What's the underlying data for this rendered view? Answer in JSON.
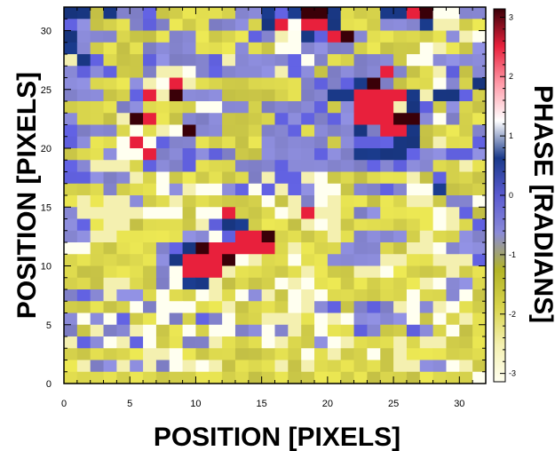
{
  "chart_data": {
    "type": "heatmap",
    "title": "",
    "xlabel": "POSITION [PIXELS]",
    "ylabel": "POSITION [PIXELS]",
    "colorbar_label": "PHASE [RADIANS]",
    "x_ticks": [
      "0",
      "5",
      "10",
      "15",
      "20",
      "25",
      "30"
    ],
    "y_ticks": [
      "0",
      "5",
      "10",
      "15",
      "20",
      "25",
      "30"
    ],
    "colorbar_ticks": [
      "-3",
      "-2",
      "-1",
      "0",
      "1",
      "2",
      "3"
    ],
    "xlim": [
      0,
      32
    ],
    "ylim": [
      0,
      32
    ],
    "zlim": [
      -3.14,
      3.14
    ],
    "colormap": [
      "#fffff0",
      "#f4f0b0",
      "#d8d44c",
      "#b2b426",
      "#8a8ad8",
      "#5a5ad0",
      "#1a3a8a",
      "#ffffff",
      "#ff9aa8",
      "#e8203c",
      "#3a0008"
    ],
    "rows_top_to_bottom": [
      "2202111000000112223320002233xx11",
      "2100011100011102343320001112xx00",
      "2111000011000011xx223310000001xx",
      "2100001111000100xx111100000xx001",
      "x21000111111x11111x1001110xx1111",
      "1211001xxx111111x11011113100x101",
      "110001xx3x000000001111231000x102",
      "1110013x3111000000112233332x2210",
      "0000110000xx1101111101333x220100",
      "1000x33001110000111111333331x100",
      "11110x0xx31100011101112133200001",
      "1100x3x111000001111101122220x001",
      "0001xx31111210011111112222111111",
      "11xxx0111100011111111111121100x0",
      "11111x0x0000001x11xx000000x01000",
      "0001000x1xxx11x1x11xx01111xx2000",
      "0x0xx100x000000x0x1xx00000xx011x",
      "1xxxxxxxx0xx3000xx3xx0110000xx20",
      "110xx00000x2220000xxx0000000xx01",
      "11xx0000011x23330000x011110x0011",
      "xx000001123333330x00011100xxx111",
      "0000000123333xx00x001111xx00xxx1",
      "00000001x333x00000x000xxx0000x00",
      "000xx001x22x0000xxx00000000xx110",
      "111x110x00xx0x1x0xxx000000x001x0",
      "00000x1xxx00x0000xx110111xx1xx00",
      "1x1x100x1011x00xxx0xxx1111x0x0x0",
      "10x11xx00x0xx11x1x0x001100110x00",
      "x11xx1x0011x000xx001xx000x0xx000",
      "000000xxx000000000x0x00x0x000000",
      "0x11x1x1xxxx0000x0x000000xx11xx0",
      "0000000000000000000000000000000x"
    ]
  }
}
